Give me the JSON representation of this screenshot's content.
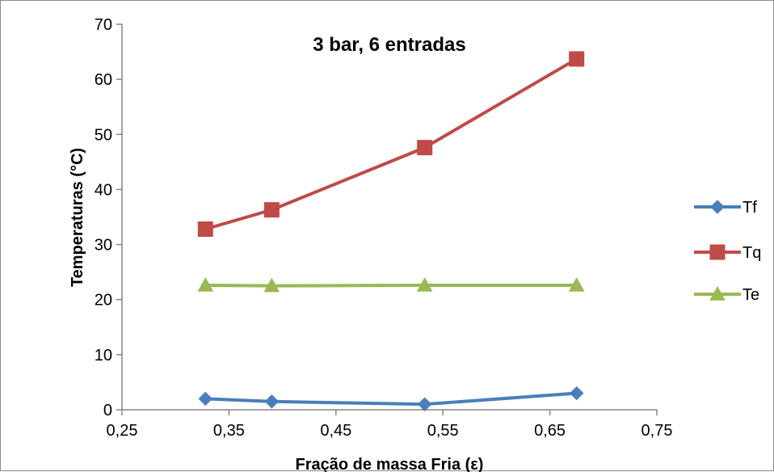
{
  "chart_data": {
    "type": "line",
    "title": "3 bar, 6 entradas",
    "xlabel": "Fração de massa Fria (ε)",
    "ylabel": "Temperaturas (°C)",
    "xlim": [
      0.25,
      0.75
    ],
    "ylim": [
      0,
      70
    ],
    "x_ticks": [
      "0,25",
      "0,35",
      "0,45",
      "0,55",
      "0,65",
      "0,75"
    ],
    "y_ticks": [
      "0",
      "10",
      "20",
      "30",
      "40",
      "50",
      "60",
      "70"
    ],
    "grid": false,
    "legend_position": "right",
    "series": [
      {
        "name": "Tf",
        "color": "#4a7ebb",
        "marker": "diamond",
        "x": [
          0.328,
          0.39,
          0.533,
          0.675
        ],
        "y": [
          2.0,
          1.5,
          1.0,
          3.0
        ]
      },
      {
        "name": "Tq",
        "color": "#be4b48",
        "marker": "square",
        "x": [
          0.328,
          0.39,
          0.533,
          0.675
        ],
        "y": [
          32.8,
          36.3,
          47.6,
          63.7
        ]
      },
      {
        "name": "Te",
        "color": "#98b954",
        "marker": "triangle",
        "x": [
          0.328,
          0.39,
          0.533,
          0.675
        ],
        "y": [
          22.6,
          22.5,
          22.6,
          22.6
        ]
      }
    ]
  }
}
